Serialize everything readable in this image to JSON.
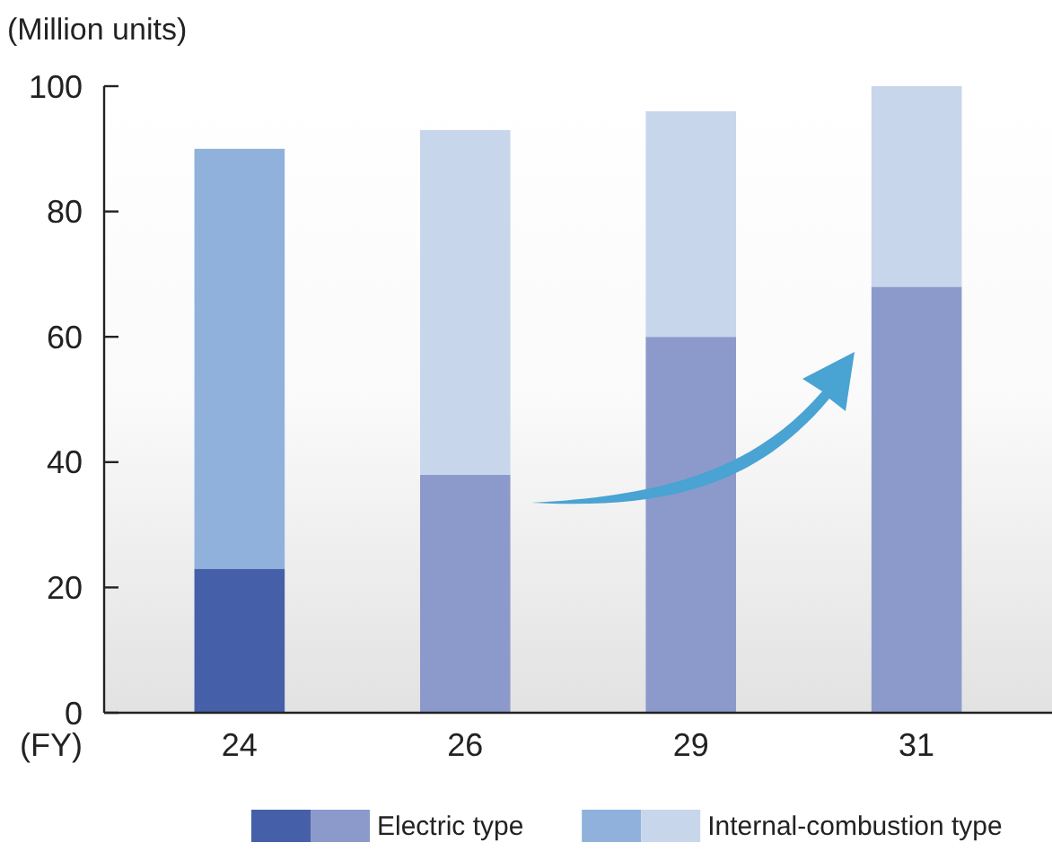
{
  "chart_data": {
    "type": "bar",
    "stacked": true,
    "ylabel": "(Million units)",
    "xlabel": "(FY)",
    "categories": [
      "24",
      "26",
      "29",
      "31"
    ],
    "series": [
      {
        "name": "Electric type",
        "colors": [
          "#4560a8",
          "#8c9acb",
          "#8c9acb",
          "#8c9acb"
        ],
        "values": [
          23,
          38,
          60,
          68
        ]
      },
      {
        "name": "Internal-combustion type",
        "colors": [
          "#8fb1dc",
          "#c8d6ec",
          "#c8d6ec",
          "#c8d6ec"
        ],
        "values": [
          67,
          55,
          36,
          32
        ]
      }
    ],
    "ylim": [
      0,
      100
    ],
    "yticks": [
      0,
      20,
      40,
      60,
      80,
      100
    ],
    "legend": "bottom right",
    "grid": false
  }
}
